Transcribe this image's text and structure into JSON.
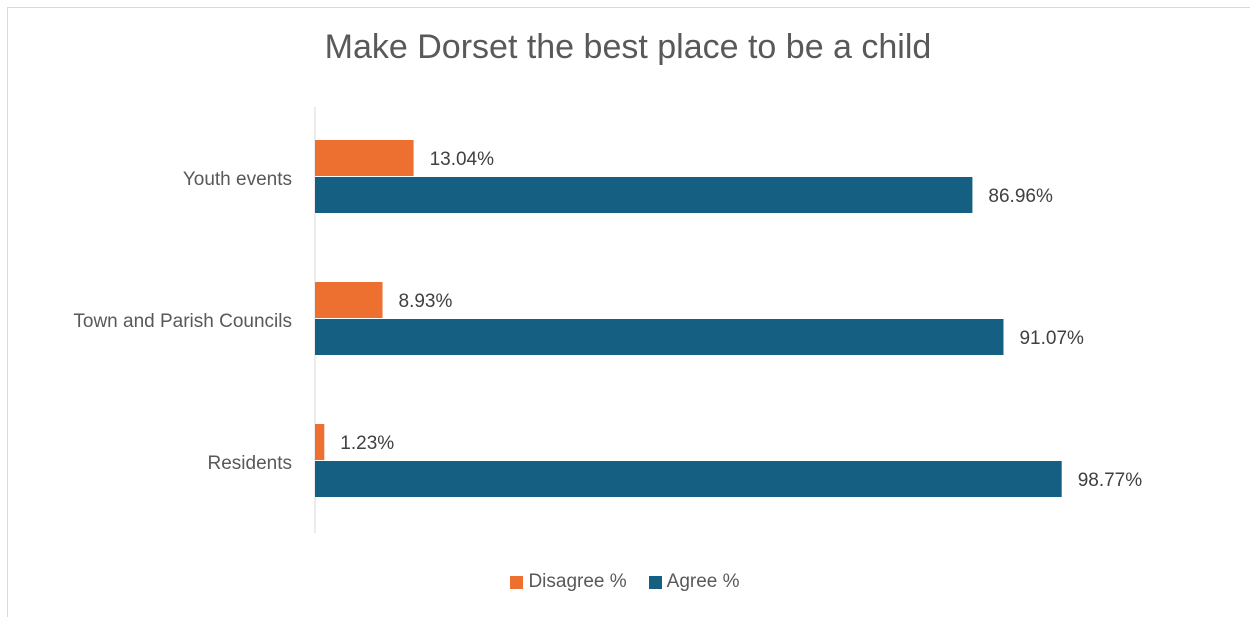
{
  "chart_data": {
    "type": "bar",
    "orientation": "horizontal",
    "title": "Make Dorset the best place to be a child",
    "categories": [
      "Youth events",
      "Town and Parish Councils",
      "Residents"
    ],
    "series": [
      {
        "name": "Disagree %",
        "color": "#ed7031",
        "values": [
          13.04,
          8.93,
          1.23
        ],
        "labels": [
          "13.04%",
          "8.93%",
          "1.23%"
        ]
      },
      {
        "name": "Agree %",
        "color": "#156082",
        "values": [
          86.96,
          91.07,
          98.77
        ],
        "labels": [
          "86.96%",
          "91.07%",
          "98.77%"
        ]
      }
    ],
    "xlim": [
      0,
      100
    ],
    "grid": false,
    "axis_visible": false,
    "legend_position": "bottom"
  }
}
